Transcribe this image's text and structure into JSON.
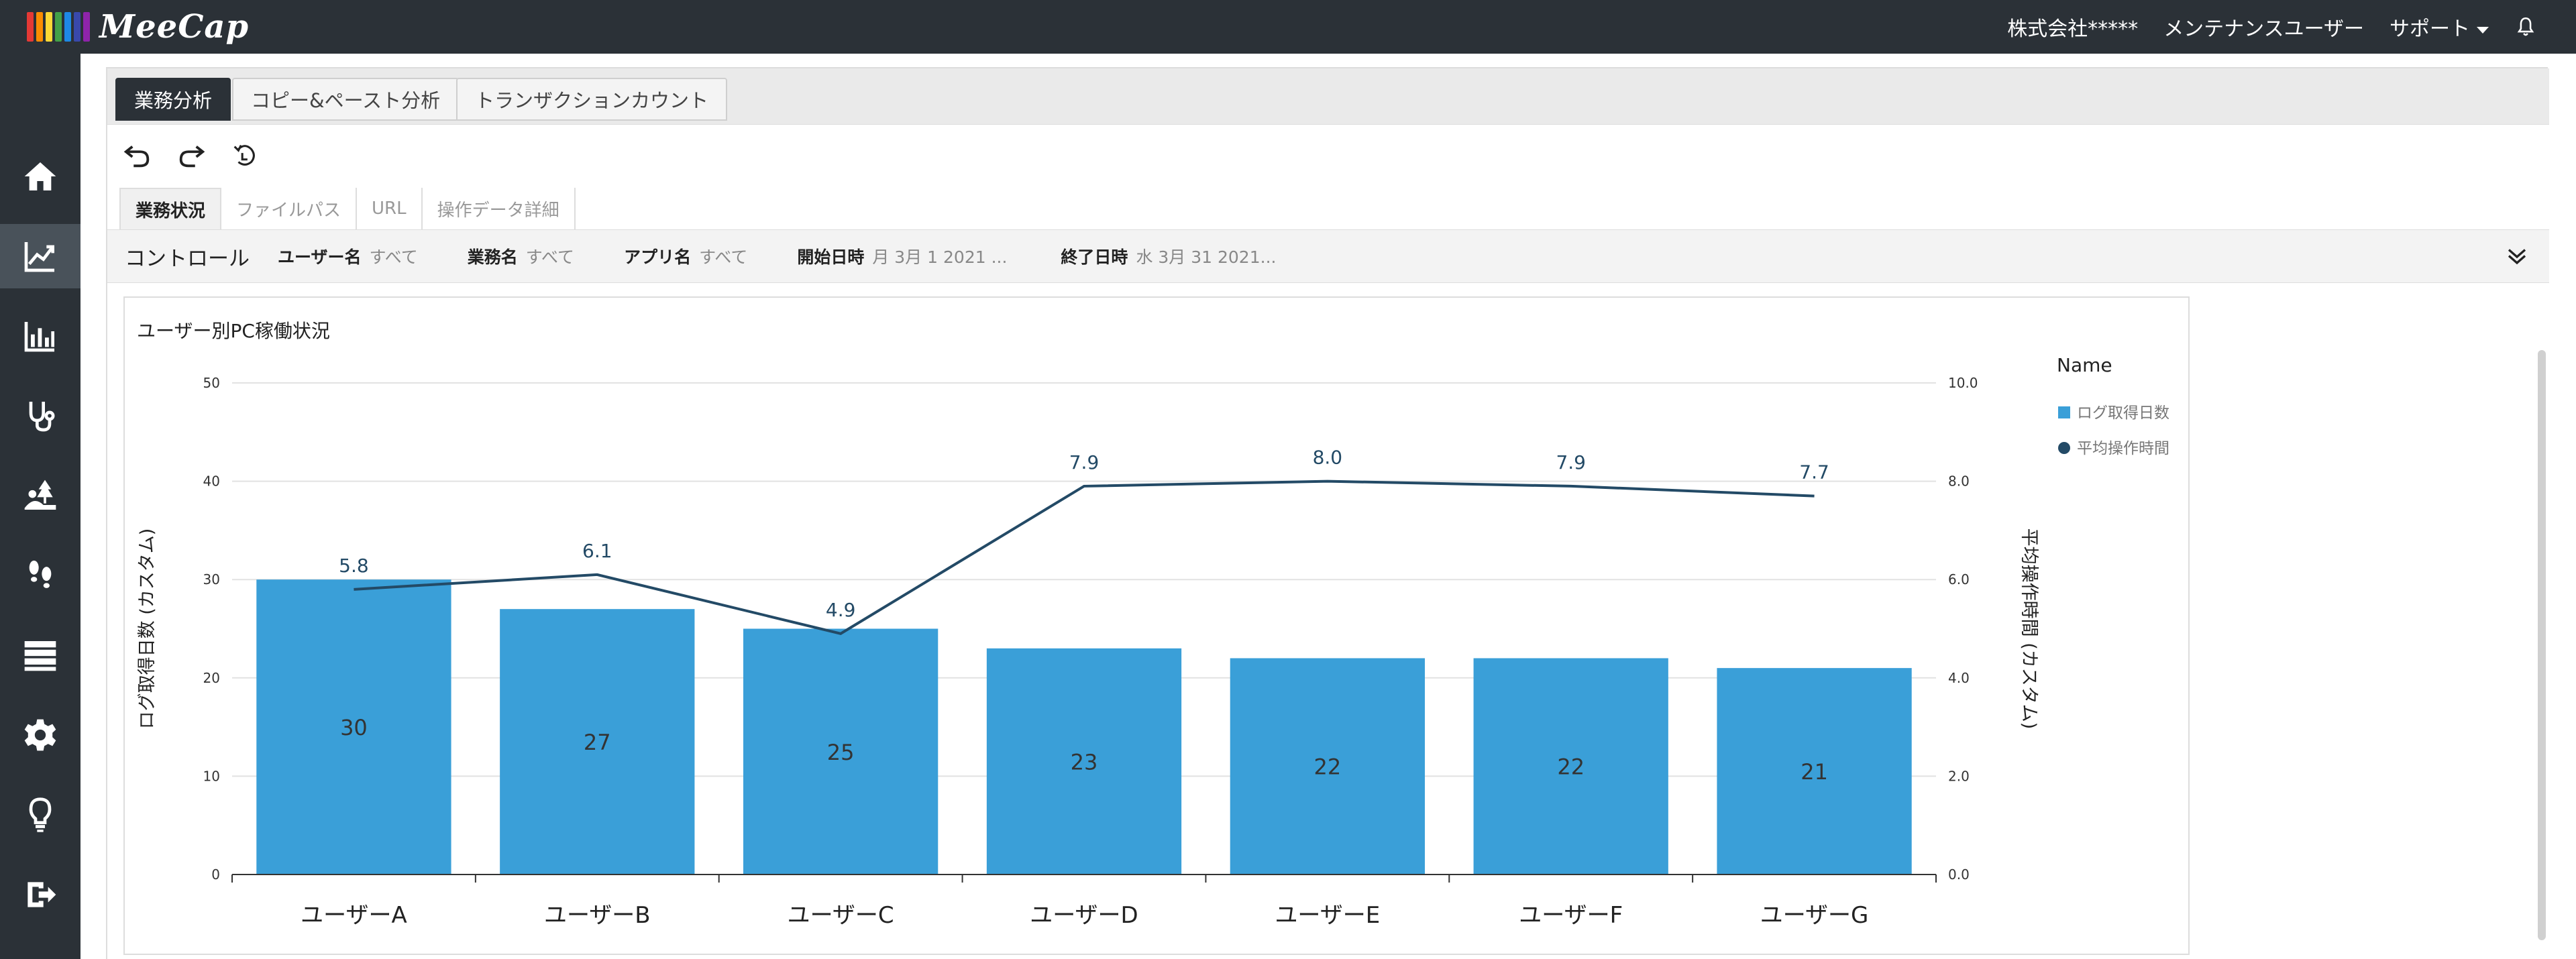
{
  "app": {
    "logo_text": "MeeCap"
  },
  "topnav": {
    "company": "株式会社*****",
    "user": "メンテナンスユーザー",
    "support": "サポート"
  },
  "sidebar": {
    "items": [
      {
        "name": "home",
        "active": false
      },
      {
        "name": "line-chart",
        "active": true
      },
      {
        "name": "bar-chart",
        "active": false
      },
      {
        "name": "stethoscope",
        "active": false
      },
      {
        "name": "tree",
        "active": false
      },
      {
        "name": "footsteps",
        "active": false
      },
      {
        "name": "server",
        "active": false
      },
      {
        "name": "gear",
        "active": false
      },
      {
        "name": "lightbulb",
        "active": false
      },
      {
        "name": "logout",
        "active": false
      }
    ]
  },
  "tabs": [
    {
      "label": "業務分析",
      "active": true
    },
    {
      "label": "コピー&ペースト分析",
      "active": false
    },
    {
      "label": "トランザクションカウント",
      "active": false
    }
  ],
  "subtabs": [
    {
      "label": "業務状況",
      "active": true
    },
    {
      "label": "ファイルパス",
      "active": false
    },
    {
      "label": "URL",
      "active": false
    },
    {
      "label": "操作データ詳細",
      "active": false
    }
  ],
  "controls": {
    "title": "コントロール",
    "filters": [
      {
        "key": "ユーザー名",
        "value": "すべて"
      },
      {
        "key": "業務名",
        "value": "すべて"
      },
      {
        "key": "アプリ名",
        "value": "すべて"
      },
      {
        "key": "開始日時",
        "value": "月 3月 1 2021 ..."
      },
      {
        "key": "終了日時",
        "value": "水 3月 31 2021..."
      }
    ]
  },
  "colors": {
    "bar": "#3a9fd8",
    "line": "#234a66",
    "topbar": "#2b3137"
  },
  "chart_data": {
    "type": "bar",
    "title": "ユーザー別PC稼働状況",
    "categories": [
      "ユーザーA",
      "ユーザーB",
      "ユーザーC",
      "ユーザーD",
      "ユーザーE",
      "ユーザーF",
      "ユーザーG"
    ],
    "series": [
      {
        "name": "ログ取得日数",
        "type": "bar",
        "axis": "left",
        "values": [
          30,
          27,
          25,
          23,
          22,
          22,
          21
        ]
      },
      {
        "name": "平均操作時間",
        "type": "line",
        "axis": "right",
        "values": [
          5.8,
          6.1,
          4.9,
          7.9,
          8.0,
          7.9,
          7.7
        ]
      }
    ],
    "ylabel": "ログ取得日数 (カスタム)",
    "y2label": "平均操作時間 (カスタム)",
    "ylim": [
      0,
      50
    ],
    "y2lim": [
      0,
      10
    ],
    "yticks": [
      "0",
      "10",
      "20",
      "30",
      "40",
      "50"
    ],
    "y2ticks": [
      "0.0",
      "2.0",
      "4.0",
      "6.0",
      "8.0",
      "10.0"
    ],
    "legend_title": "Name",
    "legend_position": "right",
    "grid": true
  }
}
